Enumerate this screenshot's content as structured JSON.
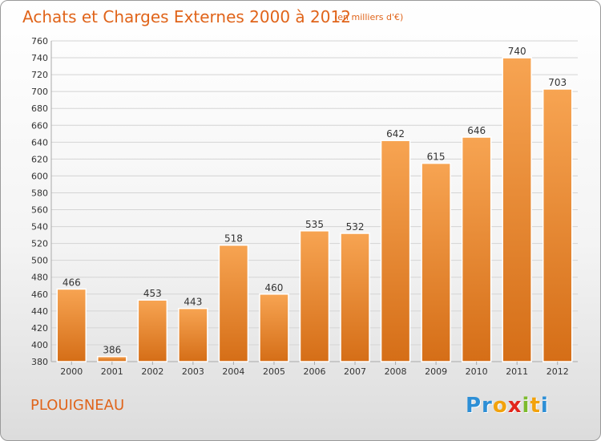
{
  "title": "Achats et Charges Externes 2000 à 2012",
  "subtitle": "(en milliers d'€)",
  "commune": "PLOUIGNEAU",
  "logo": {
    "parts": [
      "Pr",
      "o",
      "x",
      "i",
      "t",
      "i"
    ],
    "colors": [
      "#2d8fd6",
      "#f2a20c",
      "#e2261c",
      "#7dbb2e",
      "#f2a20c",
      "#2d8fd6"
    ]
  },
  "colors": {
    "accent": "#e0641a",
    "bar_top": "#f7a452",
    "bar_bottom": "#d56e17"
  },
  "chart_data": {
    "type": "bar",
    "title": "Achats et Charges Externes 2000 à 2012",
    "subtitle": "(en milliers d'€)",
    "xlabel": "",
    "ylabel": "",
    "categories": [
      "2000",
      "2001",
      "2002",
      "2003",
      "2004",
      "2005",
      "2006",
      "2007",
      "2008",
      "2009",
      "2010",
      "2011",
      "2012"
    ],
    "values": [
      466,
      386,
      453,
      443,
      518,
      460,
      535,
      532,
      642,
      615,
      646,
      740,
      703
    ],
    "ylim": [
      380,
      760
    ],
    "yticks": [
      380,
      400,
      420,
      440,
      460,
      480,
      500,
      520,
      540,
      560,
      580,
      600,
      620,
      640,
      660,
      680,
      700,
      720,
      740,
      760
    ],
    "grid": true,
    "legend": "none"
  }
}
